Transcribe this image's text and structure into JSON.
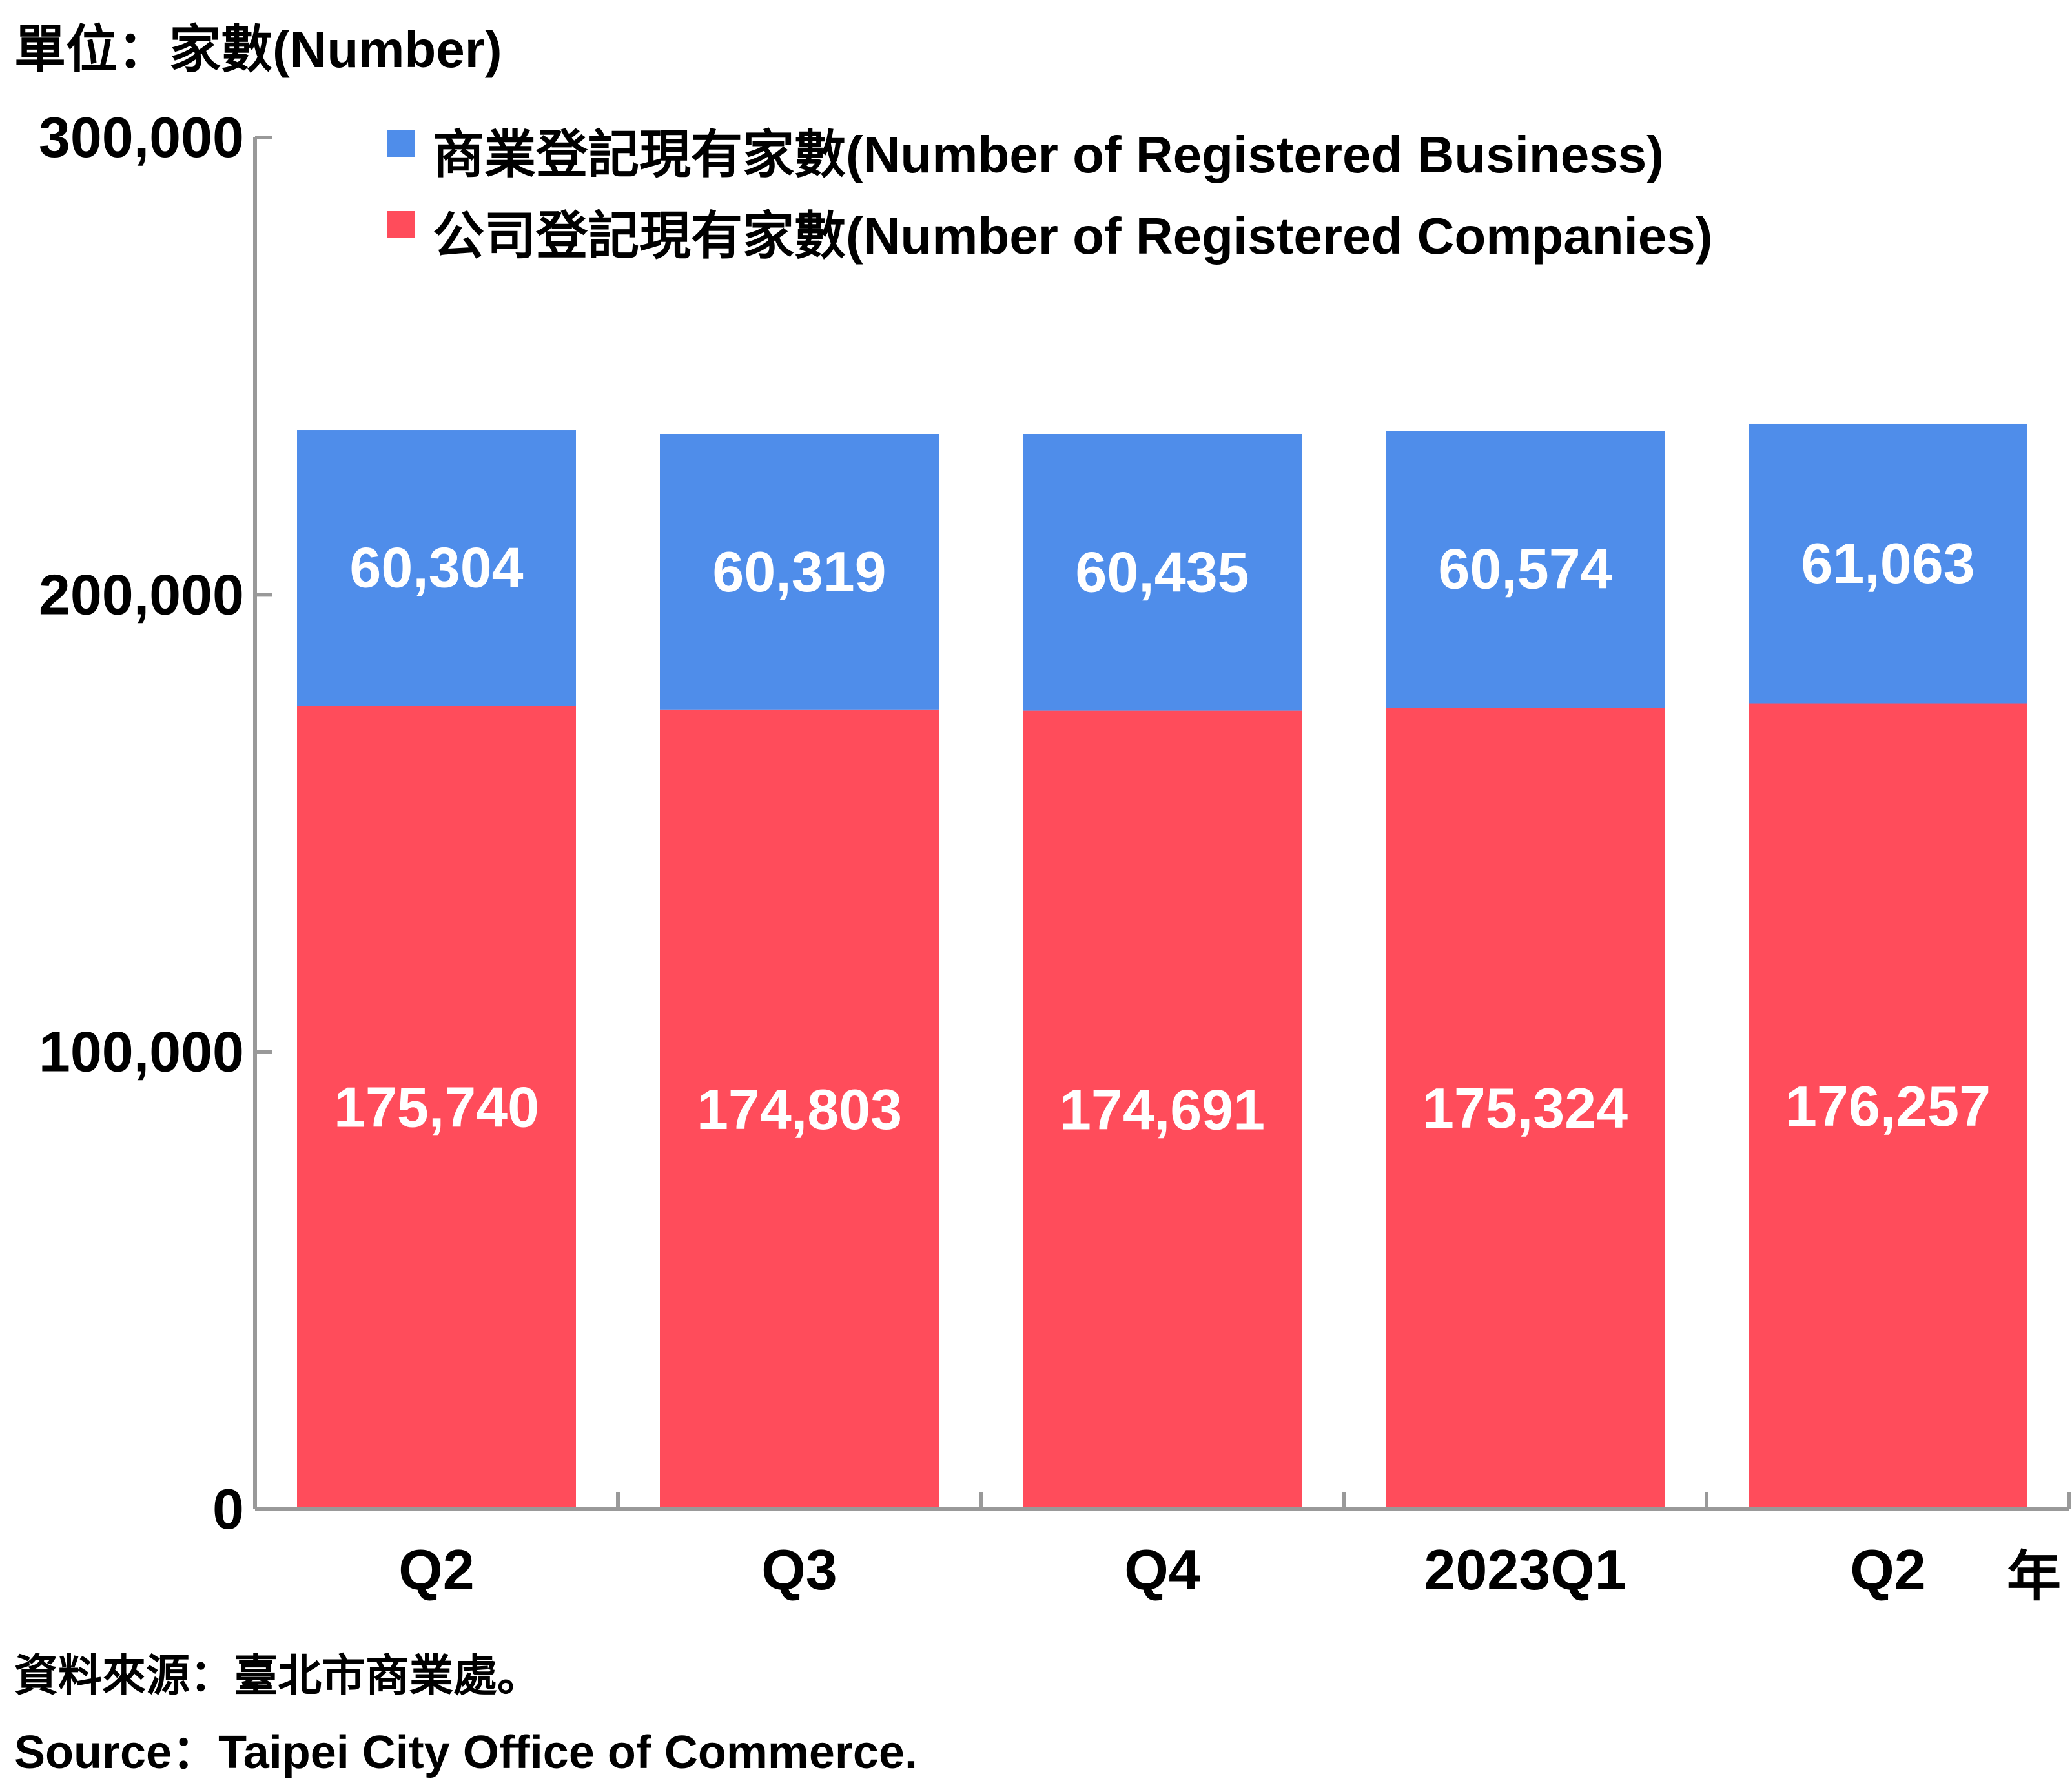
{
  "unit_label": "單位：家數(Number)",
  "source_zh": "資料來源：臺北市商業處。",
  "source_en": "Source：Taipei City Office of Commerce.",
  "x_suffix": "年",
  "colors": {
    "business": "#4f8dea",
    "companies": "#ff4c5b",
    "axis": "#999999"
  },
  "legend": [
    {
      "label": "商業登記現有家數(Number of Registered Business)",
      "color": "#4f8dea"
    },
    {
      "label": "公司登記現有家數(Number of Registered Companies)",
      "color": "#ff4c5b"
    }
  ],
  "chart_data": {
    "type": "bar",
    "stacked": true,
    "categories": [
      "Q2",
      "Q3",
      "Q4",
      "2023Q1",
      "Q2"
    ],
    "series": [
      {
        "name": "公司登記現有家數(Number of Registered Companies)",
        "values": [
          175740,
          174803,
          174691,
          175324,
          176257
        ],
        "labels": [
          "175,740",
          "174,803",
          "174,691",
          "175,324",
          "176,257"
        ]
      },
      {
        "name": "商業登記現有家數(Number of Registered Business)",
        "values": [
          60304,
          60319,
          60435,
          60574,
          61063
        ],
        "labels": [
          "60,304",
          "60,319",
          "60,435",
          "60,574",
          "61,063"
        ]
      }
    ],
    "ylim": [
      0,
      300000
    ],
    "yticks": [
      0,
      100000,
      200000,
      300000
    ],
    "ytick_labels": [
      "0",
      "100,000",
      "200,000",
      "300,000"
    ],
    "grid": false,
    "legend_position": "top"
  }
}
